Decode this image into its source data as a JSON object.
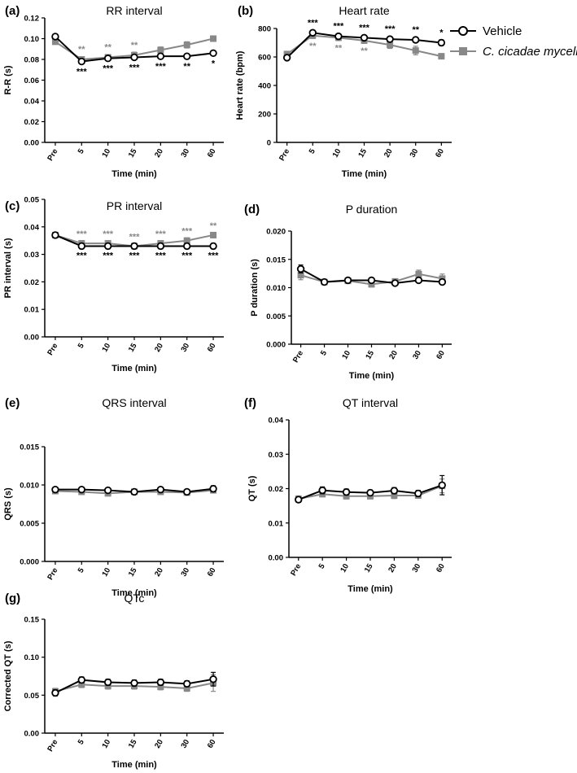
{
  "colors": {
    "vehicle": "#000000",
    "mycelia": "#888888"
  },
  "legend": {
    "placement": "top-right",
    "items": [
      {
        "key": "vehicle",
        "label": "Vehicle",
        "marker": "open-circle"
      },
      {
        "key": "mycelia",
        "label": "C. cicadae mycelia",
        "marker": "filled-square",
        "italic_part": "C. cicadae mycelia"
      }
    ]
  },
  "chart_data": [
    {
      "id": "a",
      "letter": "(a)",
      "type": "line",
      "title": "RR interval",
      "xlabel": "Time (min)",
      "ylabel": "R-R (s)",
      "categories": [
        "Pre",
        "5",
        "10",
        "15",
        "20",
        "30",
        "60"
      ],
      "ylim": [
        0,
        0.12
      ],
      "yticks": [
        "0.00",
        "0.02",
        "0.04",
        "0.06",
        "0.08",
        "0.10",
        "0.12"
      ],
      "series": [
        {
          "name": "Vehicle",
          "key": "vehicle",
          "values": [
            0.102,
            0.078,
            0.081,
            0.082,
            0.083,
            0.083,
            0.086
          ],
          "errors": [
            0.002,
            0.002,
            0.002,
            0.002,
            0.002,
            0.002,
            0.002
          ]
        },
        {
          "name": "C. cicadae mycelia",
          "key": "mycelia",
          "values": [
            0.097,
            0.08,
            0.082,
            0.084,
            0.089,
            0.094,
            0.1
          ],
          "errors": [
            0.002,
            0.002,
            0.002,
            0.003,
            0.003,
            0.003,
            0.002
          ]
        }
      ],
      "significance": {
        "mycelia": [
          "",
          "**",
          "**",
          "**",
          "",
          "",
          ""
        ],
        "vehicle": [
          "",
          "***",
          "***",
          "***",
          "***",
          "**",
          "*"
        ]
      }
    },
    {
      "id": "b",
      "letter": "(b)",
      "type": "line",
      "title": "Heart rate",
      "xlabel": "Time (min)",
      "ylabel": "Heart rate (bpm)",
      "categories": [
        "Pre",
        "5",
        "10",
        "15",
        "20",
        "30",
        "60"
      ],
      "ylim": [
        0,
        800
      ],
      "yticks": [
        "0",
        "200",
        "400",
        "600",
        "800"
      ],
      "series": [
        {
          "name": "Vehicle",
          "key": "vehicle",
          "values": [
            595,
            770,
            745,
            735,
            725,
            720,
            700
          ],
          "errors": [
            15,
            15,
            15,
            15,
            15,
            15,
            20
          ]
        },
        {
          "name": "C. cicadae mycelia",
          "key": "mycelia",
          "values": [
            620,
            750,
            735,
            715,
            685,
            645,
            605
          ],
          "errors": [
            20,
            20,
            20,
            20,
            25,
            30,
            15
          ]
        }
      ],
      "significance": {
        "vehicle": [
          "",
          "***",
          "***",
          "***",
          "***",
          "**",
          "*"
        ],
        "mycelia": [
          "",
          "**",
          "**",
          "**",
          "",
          "",
          ""
        ]
      }
    },
    {
      "id": "c",
      "letter": "(c)",
      "type": "line",
      "title": "PR interval",
      "xlabel": "Time (min)",
      "ylabel": "PR interval (s)",
      "categories": [
        "Pre",
        "5",
        "10",
        "15",
        "20",
        "30",
        "60"
      ],
      "ylim": [
        0,
        0.05
      ],
      "yticks": [
        "0.00",
        "0.01",
        "0.02",
        "0.03",
        "0.04",
        "0.05"
      ],
      "series": [
        {
          "name": "Vehicle",
          "key": "vehicle",
          "values": [
            0.037,
            0.033,
            0.033,
            0.033,
            0.033,
            0.033,
            0.033
          ],
          "errors": [
            0.001,
            0.001,
            0.001,
            0.001,
            0.001,
            0.001,
            0.001
          ]
        },
        {
          "name": "C. cicadae mycelia",
          "key": "mycelia",
          "values": [
            0.037,
            0.034,
            0.034,
            0.033,
            0.034,
            0.035,
            0.037
          ],
          "errors": [
            0.001,
            0.001,
            0.001,
            0.001,
            0.001,
            0.001,
            0.001
          ]
        }
      ],
      "significance": {
        "mycelia": [
          "",
          "***",
          "***",
          "***",
          "***",
          "***",
          "**"
        ],
        "vehicle": [
          "",
          "***",
          "***",
          "***",
          "***",
          "***",
          "***"
        ]
      }
    },
    {
      "id": "d",
      "letter": "(d)",
      "type": "line",
      "title": "P duration",
      "xlabel": "Time (min)",
      "ylabel": "P duration (s)",
      "categories": [
        "Pre",
        "5",
        "10",
        "15",
        "20",
        "30",
        "60"
      ],
      "ylim": [
        0,
        0.02
      ],
      "yticks": [
        "0.000",
        "0.005",
        "0.010",
        "0.015",
        "0.020"
      ],
      "series": [
        {
          "name": "Vehicle",
          "key": "vehicle",
          "values": [
            0.0133,
            0.011,
            0.0113,
            0.0113,
            0.0108,
            0.0113,
            0.011
          ],
          "errors": [
            0.0007,
            0.0003,
            0.0004,
            0.0004,
            0.0004,
            0.0004,
            0.0004
          ]
        },
        {
          "name": "C. cicadae mycelia",
          "key": "mycelia",
          "values": [
            0.0122,
            0.011,
            0.0112,
            0.0106,
            0.0111,
            0.0124,
            0.0116
          ],
          "errors": [
            0.0008,
            0.0003,
            0.0004,
            0.0005,
            0.0004,
            0.0007,
            0.0008
          ]
        }
      ]
    },
    {
      "id": "e",
      "letter": "(e)",
      "type": "line",
      "title": "QRS interval",
      "xlabel": "Time (min)",
      "ylabel": "QRS (s)",
      "categories": [
        "Pre",
        "5",
        "10",
        "15",
        "20",
        "30",
        "60"
      ],
      "ylim": [
        0,
        0.015
      ],
      "yticks": [
        "0.000",
        "0.005",
        "0.010",
        "0.015"
      ],
      "series": [
        {
          "name": "Vehicle",
          "key": "vehicle",
          "values": [
            0.0094,
            0.0094,
            0.0093,
            0.0091,
            0.0094,
            0.0091,
            0.0095
          ],
          "errors": [
            0.0003,
            0.0003,
            0.0003,
            0.0002,
            0.0003,
            0.0002,
            0.0004
          ]
        },
        {
          "name": "C. cicadae mycelia",
          "key": "mycelia",
          "values": [
            0.0092,
            0.0091,
            0.0089,
            0.0091,
            0.0091,
            0.009,
            0.0093
          ],
          "errors": [
            0.0003,
            0.0003,
            0.0003,
            0.0002,
            0.0003,
            0.0002,
            0.0003
          ]
        }
      ]
    },
    {
      "id": "f",
      "letter": "(f)",
      "type": "line",
      "title": "QT interval",
      "xlabel": "Time (min)",
      "ylabel": "QT (s)",
      "categories": [
        "Pre",
        "5",
        "10",
        "15",
        "20",
        "30",
        "60"
      ],
      "ylim": [
        0,
        0.04
      ],
      "yticks": [
        "0.00",
        "0.01",
        "0.02",
        "0.03",
        "0.04"
      ],
      "series": [
        {
          "name": "Vehicle",
          "key": "vehicle",
          "values": [
            0.0168,
            0.0195,
            0.019,
            0.0188,
            0.0194,
            0.0186,
            0.021
          ],
          "errors": [
            0.0008,
            0.001,
            0.0009,
            0.0008,
            0.0009,
            0.0009,
            0.0028
          ]
        },
        {
          "name": "C. cicadae mycelia",
          "key": "mycelia",
          "values": [
            0.017,
            0.0184,
            0.0178,
            0.0178,
            0.018,
            0.018,
            0.0208
          ],
          "errors": [
            0.0009,
            0.0008,
            0.0008,
            0.0008,
            0.0009,
            0.0008,
            0.002
          ]
        }
      ]
    },
    {
      "id": "g",
      "letter": "(g)",
      "type": "line",
      "title": "QTc",
      "xlabel": "Time (min)",
      "ylabel": "Corrected QT (s)",
      "categories": [
        "Pre",
        "5",
        "10",
        "15",
        "20",
        "30",
        "60"
      ],
      "ylim": [
        0,
        0.15
      ],
      "yticks": [
        "0.00",
        "0.05",
        "0.10",
        "0.15"
      ],
      "series": [
        {
          "name": "Vehicle",
          "key": "vehicle",
          "values": [
            0.053,
            0.07,
            0.067,
            0.066,
            0.067,
            0.065,
            0.071
          ],
          "errors": [
            0.004,
            0.004,
            0.004,
            0.004,
            0.004,
            0.004,
            0.009
          ]
        },
        {
          "name": "C. cicadae mycelia",
          "key": "mycelia",
          "values": [
            0.055,
            0.064,
            0.062,
            0.062,
            0.061,
            0.059,
            0.066
          ],
          "errors": [
            0.004,
            0.004,
            0.004,
            0.004,
            0.004,
            0.004,
            0.011
          ]
        }
      ]
    }
  ]
}
